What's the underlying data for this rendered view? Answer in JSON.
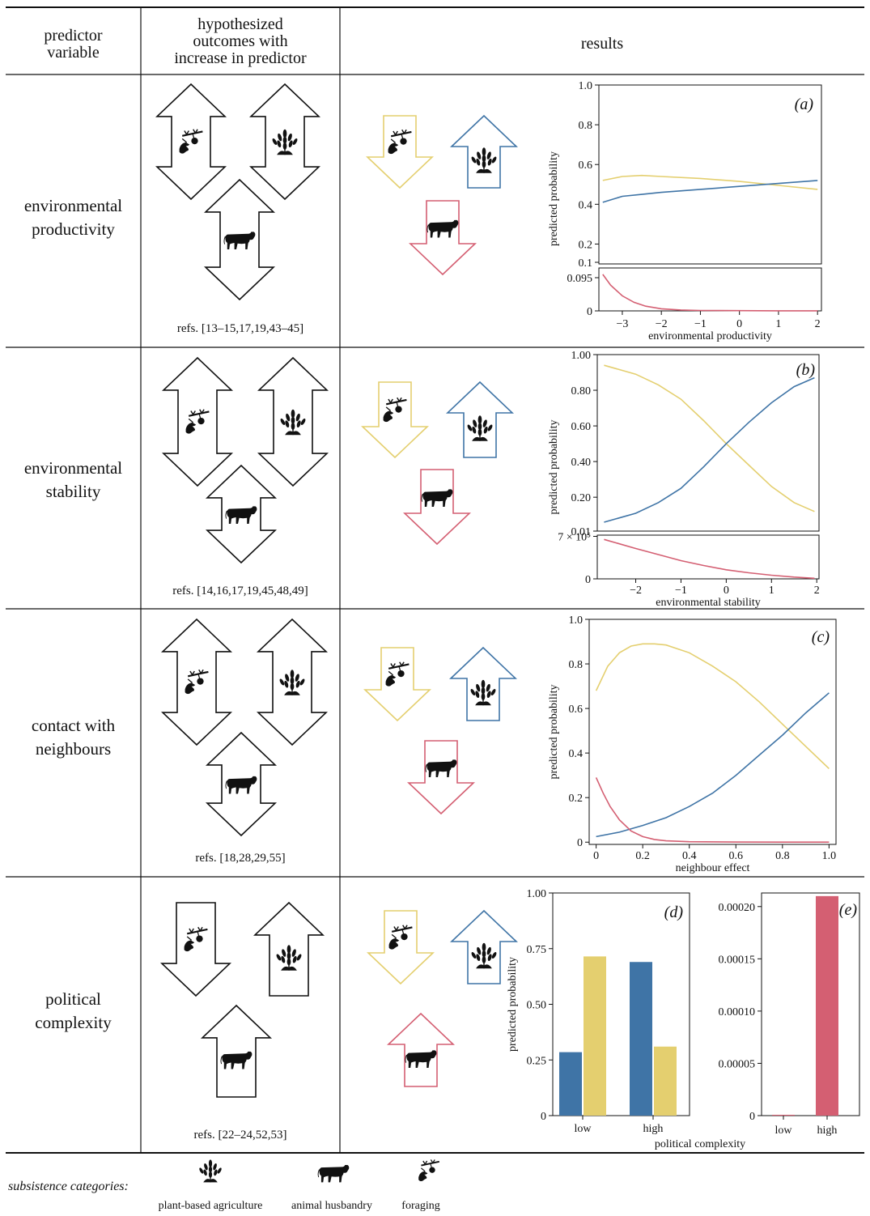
{
  "header": {
    "predictor": "predictor\nvariable",
    "hypothesized": "hypothesized\noutcomes with\nincrease in predictor",
    "results": "results"
  },
  "rows": [
    {
      "label": "environmental\nproductivity",
      "refs": "refs. [13–15,17,19,43–45]"
    },
    {
      "label": "environmental\nstability",
      "refs": "refs. [14,16,17,19,45,48,49]"
    },
    {
      "label": "contact with\nneighbours",
      "refs": "refs. [18,28,29,55]"
    },
    {
      "label": "political\ncomplexity",
      "refs": "refs. [22–24,52,53]"
    }
  ],
  "colors": {
    "foraging": "#e4cf6f",
    "agriculture": "#3f74a6",
    "husbandry": "#d45f72",
    "line": "#111111"
  },
  "icons": [
    "foraging-icon",
    "plant-agriculture-icon",
    "cow-icon"
  ],
  "legend": {
    "title": "subsistence categories:",
    "items": [
      "plant-based agriculture",
      "animal husbandry",
      "foraging"
    ]
  },
  "chart_data": [
    {
      "panel": "(a)",
      "type": "line",
      "xlabel": "environmental productivity",
      "ylabel": "predicted probability",
      "xlim": [
        -3.6,
        2.1
      ],
      "xticks": [
        "−3",
        "−2",
        "−1",
        "0",
        "1",
        "2"
      ],
      "upper_yticks": [
        "1.0",
        "0.8",
        "0.6",
        "0.4",
        "0.2",
        "0.1"
      ],
      "lower_yticks": [
        "0.095",
        "0"
      ],
      "series": [
        {
          "x": [
            -3.5,
            -3.0,
            -2.5,
            -2.0,
            -1.0,
            0.0,
            1.0,
            2.0
          ],
          "y": [
            0.52,
            0.54,
            0.545,
            0.54,
            0.53,
            0.515,
            0.495,
            0.475
          ]
        },
        {
          "x": [
            -3.5,
            -3.0,
            -2.5,
            -2.0,
            -1.0,
            0.0,
            1.0,
            2.0
          ],
          "y": [
            0.41,
            0.44,
            0.45,
            0.46,
            0.475,
            0.49,
            0.505,
            0.52
          ]
        },
        {
          "x": [
            -3.5,
            -3.3,
            -3.0,
            -2.7,
            -2.4,
            -2.0,
            -1.5,
            -1.0,
            0.0,
            1.0,
            2.0
          ],
          "y": [
            0.085,
            0.06,
            0.035,
            0.02,
            0.011,
            0.005,
            0.002,
            0.001,
            0.0005,
            0.0002,
            0.0001
          ]
        }
      ]
    },
    {
      "panel": "(b)",
      "type": "line",
      "xlabel": "environmental stability",
      "ylabel": "predicted probability",
      "xlim": [
        -2.85,
        2.05
      ],
      "xticks": [
        "−2",
        "−1",
        "0",
        "1",
        "2"
      ],
      "upper_yticks": [
        "1.00",
        "0.80",
        "0.60",
        "0.40",
        "0.20",
        "0.01"
      ],
      "lower_yticks": [
        "7 × 10⁵",
        "0"
      ],
      "series": [
        {
          "x": [
            -2.7,
            -2.0,
            -1.5,
            -1.0,
            -0.5,
            0.0,
            0.5,
            1.0,
            1.5,
            1.95
          ],
          "y": [
            0.94,
            0.89,
            0.83,
            0.75,
            0.63,
            0.5,
            0.38,
            0.26,
            0.17,
            0.12
          ]
        },
        {
          "x": [
            -2.7,
            -2.0,
            -1.5,
            -1.0,
            -0.5,
            0.0,
            0.5,
            1.0,
            1.5,
            1.95
          ],
          "y": [
            0.06,
            0.11,
            0.17,
            0.25,
            0.37,
            0.5,
            0.62,
            0.73,
            0.82,
            0.87
          ]
        },
        {
          "x": [
            -2.7,
            -2.0,
            -1.5,
            -1.0,
            -0.5,
            0.0,
            0.5,
            1.0,
            1.5,
            1.95
          ],
          "y": [
            6.5,
            5.0,
            4.0,
            3.0,
            2.2,
            1.5,
            1.0,
            0.6,
            0.3,
            0.1
          ]
        }
      ]
    },
    {
      "panel": "(c)",
      "type": "line",
      "xlabel": "neighbour effect",
      "ylabel": "predicted probability",
      "xlim": [
        -0.03,
        1.03
      ],
      "ylim": [
        -0.01,
        1.0
      ],
      "xticks": [
        "0",
        "0.2",
        "0.4",
        "0.6",
        "0.8",
        "1.0"
      ],
      "yticks": [
        "1.0",
        "0.8",
        "0.6",
        "0.4",
        "0.2",
        "0"
      ],
      "series": [
        {
          "x": [
            0.0,
            0.05,
            0.1,
            0.15,
            0.2,
            0.25,
            0.3,
            0.4,
            0.5,
            0.6,
            0.7,
            0.8,
            0.9,
            1.0
          ],
          "y": [
            0.68,
            0.79,
            0.85,
            0.88,
            0.89,
            0.89,
            0.885,
            0.85,
            0.79,
            0.72,
            0.63,
            0.53,
            0.43,
            0.33
          ]
        },
        {
          "x": [
            0.0,
            0.1,
            0.2,
            0.3,
            0.4,
            0.5,
            0.6,
            0.7,
            0.8,
            0.9,
            1.0
          ],
          "y": [
            0.025,
            0.045,
            0.075,
            0.11,
            0.16,
            0.22,
            0.3,
            0.39,
            0.48,
            0.58,
            0.67
          ]
        },
        {
          "x": [
            0.0,
            0.03,
            0.06,
            0.1,
            0.15,
            0.2,
            0.25,
            0.3,
            0.4,
            0.6,
            0.8,
            1.0
          ],
          "y": [
            0.29,
            0.22,
            0.16,
            0.1,
            0.05,
            0.025,
            0.012,
            0.006,
            0.002,
            0.0005,
            0.0002,
            0.0001
          ]
        }
      ]
    },
    {
      "panel": "(d)",
      "type": "bar",
      "ylabel": "predicted probability",
      "xlabel": "political complexity",
      "categories": [
        "low",
        "high"
      ],
      "ylim": [
        0,
        1.0
      ],
      "yticks": [
        "1.00",
        "0.75",
        "0.50",
        "0.25",
        "0"
      ],
      "series": [
        {
          "values": [
            0.285,
            0.69
          ]
        },
        {
          "values": [
            0.715,
            0.31
          ]
        }
      ]
    },
    {
      "panel": "(e)",
      "type": "bar",
      "categories": [
        "low",
        "high"
      ],
      "ylim": [
        0,
        0.000213
      ],
      "yticks": [
        "0.00020",
        "0.00015",
        "0.00010",
        "0.00005",
        "0"
      ],
      "series": [
        {
          "values": [
            8e-07,
            0.00021
          ]
        }
      ]
    }
  ]
}
